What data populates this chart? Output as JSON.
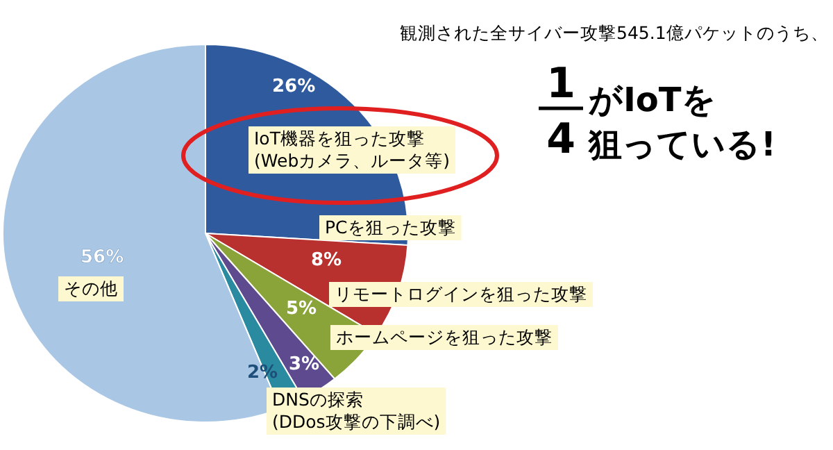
{
  "chart_data": {
    "type": "pie",
    "title": "観測された全サイバー攻撃545.1億パケットのうち、",
    "categories": [
      "IoT機器を狙った攻撃\n(Webカメラ、ルータ等)",
      "PCを狙った攻撃",
      "リモートログインを狙った攻撃",
      "ホームページを狙った攻撃",
      "DNSの探索\n(DDos攻撃の下調べ)",
      "その他"
    ],
    "values": [
      26,
      8,
      5,
      3,
      2,
      56
    ],
    "value_labels": [
      "26%",
      "8%",
      "5%",
      "3%",
      "2%",
      "56%"
    ],
    "colors": [
      "#2f5b9e",
      "#b8312f",
      "#8aa43a",
      "#5e4a8e",
      "#2a8aa0",
      "#a9c7e4"
    ],
    "annotations": [
      "1",
      "4",
      "がIoTを",
      "狙っている!"
    ]
  }
}
